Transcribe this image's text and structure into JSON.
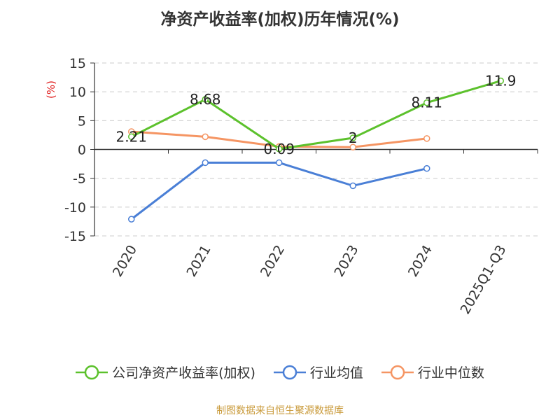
{
  "title": "净资产收益率(加权)历年情况(%)",
  "source": "制图数据来自恒生聚源数据库",
  "chart_data": {
    "type": "line",
    "title": "净资产收益率(加权)历年情况(%)",
    "ylabel": "(%)",
    "xlabel": "",
    "categories": [
      "2020",
      "2021",
      "2022",
      "2023",
      "2024",
      "2025Q1-Q3"
    ],
    "ylim": [
      -15,
      15
    ],
    "yticks": [
      "15",
      "10",
      "5",
      "0",
      "-5",
      "-10",
      "-15"
    ],
    "grid": true,
    "legend_position": "bottom",
    "series": [
      {
        "name": "公司净资产收益率(加权)",
        "color": "#5cc12c",
        "values": [
          2.21,
          8.68,
          0.09,
          2,
          8.11,
          11.9
        ],
        "labels": [
          "2.21",
          "8.68",
          "0.09",
          "2",
          "8.11",
          "11.9"
        ]
      },
      {
        "name": "行业均值",
        "color": "#4a7fd6",
        "values": [
          -12.1,
          -2.3,
          -2.3,
          -6.3,
          -3.3,
          null
        ]
      },
      {
        "name": "行业中位数",
        "color": "#f59563",
        "values": [
          3.1,
          2.2,
          0.5,
          0.4,
          1.9,
          null
        ]
      }
    ]
  }
}
